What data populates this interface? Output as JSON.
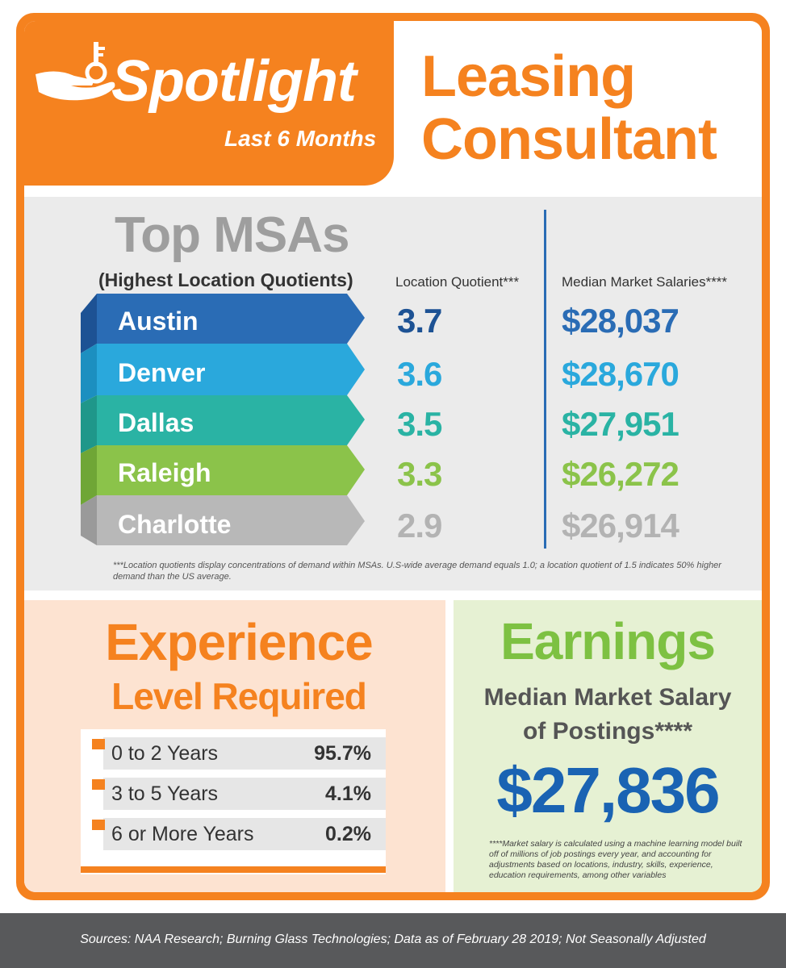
{
  "header": {
    "spotlight": "Spotlight",
    "period": "Last 6 Months",
    "role_line1": "Leasing",
    "role_line2": "Consultant"
  },
  "msa": {
    "title": "Top MSAs",
    "subtitle": "(Highest Location Quotients)",
    "col_lq": "Location Quotient***",
    "col_salary": "Median Market Salaries****",
    "rows": [
      {
        "city": "Austin",
        "lq": "3.7",
        "salary": "$28,037",
        "color": "#2a6cb5"
      },
      {
        "city": "Denver",
        "lq": "3.6",
        "salary": "$28,670",
        "color": "#2aa8dc"
      },
      {
        "city": "Dallas",
        "lq": "3.5",
        "salary": "$27,951",
        "color": "#2ab3a4"
      },
      {
        "city": "Raleigh",
        "lq": "3.3",
        "salary": "$26,272",
        "color": "#8bc34a"
      },
      {
        "city": "Charlotte",
        "lq": "2.9",
        "salary": "$26,914",
        "color": "#b3b3b3"
      }
    ],
    "footnote": "***Location quotients display concentrations of demand within MSAs. U.S-wide average demand equals 1.0; a location quotient of 1.5 indicates 50% higher demand than the US average."
  },
  "experience": {
    "title_line1": "Experience",
    "title_line2": "Level Required",
    "rows": [
      {
        "label": "0 to 2 Years",
        "value": "95.7%"
      },
      {
        "label": "3 to 5 Years",
        "value": "4.1%"
      },
      {
        "label": "6 or More Years",
        "value": "0.2%"
      }
    ]
  },
  "earnings": {
    "title": "Earnings",
    "subtitle_line1": "Median Market Salary",
    "subtitle_line2": "of Postings****",
    "value": "$27,836",
    "footnote": "****Market salary is calculated using a machine learning model built off of millions of job postings every year, and accounting for adjustments based on locations, industry, skills, experience, education requirements, among other variables"
  },
  "footer": {
    "sources": "Sources:  NAA Research; Burning Glass Technologies; Data as of February 28 2019; Not Seasonally Adjusted"
  },
  "colors": {
    "orange": "#f5821f",
    "blue": "#1a63b3",
    "green": "#7dc142"
  },
  "icons": {
    "logo": "hand-key-icon"
  }
}
